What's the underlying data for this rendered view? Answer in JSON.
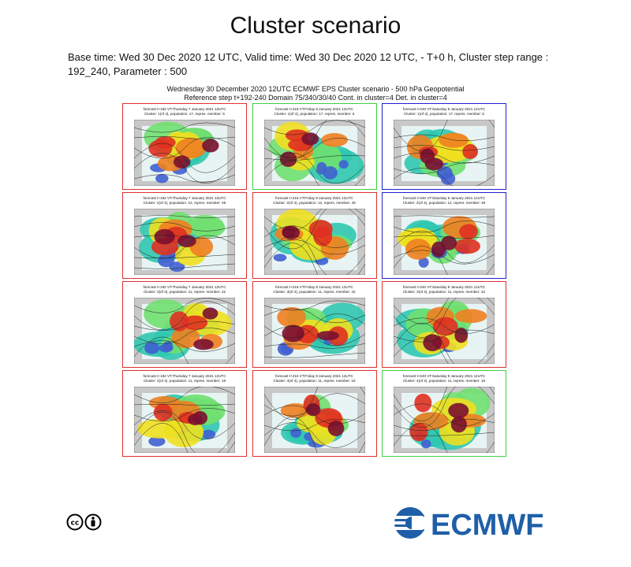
{
  "header": {
    "title": "Cluster scenario",
    "info": "Base time: Wed 30 Dec 2020 12 UTC, Valid time: Wed 30 Dec 2020 12 UTC, - T+0 h, Cluster step range : 192_240, Parameter : 500"
  },
  "figure": {
    "title_lines": [
      "Wednesday 30 December 2020 12UTC ECMWF EPS Cluster scenario - 500 hPa Geopotential",
      "Reference step t+192-240 Domain 75/340/30/40 Cont. in cluster=4 Det. in cluster=4"
    ],
    "panels": [
      {
        "line1": "forecast t+192 VT:Thursday 7 January 2021 12UTC",
        "line2": "Cluster: 1(of 4), population: 17, repres. member: 5",
        "border": "#e03030"
      },
      {
        "line1": "forecast t+216 VT:Friday 8 January 2021 12UTC",
        "line2": "Cluster: 1(of 4), population: 17, repres. member: 5",
        "border": "#40d040"
      },
      {
        "line1": "forecast t+240 VT:Saturday 9 January 2021 12UTC",
        "line2": "Cluster: 1(of 4), population: 17, repres. member: 5",
        "border": "#2020d0"
      },
      {
        "line1": "forecast t+192 VT:Thursday 7 January 2021 12UTC",
        "line2": "Cluster: 2(of 4), population: 12, repres. member: 49",
        "border": "#e03030"
      },
      {
        "line1": "forecast t+216 VT:Friday 8 January 2021 12UTC",
        "line2": "Cluster: 2(of 4), population: 12, repres. member: 49",
        "border": "#e03030"
      },
      {
        "line1": "forecast t+240 VT:Saturday 9 January 2021 12UTC",
        "line2": "Cluster: 2(of 4), population: 12, repres. member: 49",
        "border": "#2020d0"
      },
      {
        "line1": "forecast t+192 VT:Thursday 7 January 2021 12UTC",
        "line2": "Cluster: 3(of 4), population: 11, repres. member: 42",
        "border": "#e03030"
      },
      {
        "line1": "forecast t+216 VT:Friday 8 January 2021 12UTC",
        "line2": "Cluster: 3(of 4), population: 11, repres. member: 42",
        "border": "#e03030"
      },
      {
        "line1": "forecast t+240 VT:Saturday 9 January 2021 12UTC",
        "line2": "Cluster: 3(of 4), population: 11, repres. member: 42",
        "border": "#e03030"
      },
      {
        "line1": "forecast t+192 VT:Thursday 7 January 2021 12UTC",
        "line2": "Cluster: 4(of 4), population: 11, repres. member: 18",
        "border": "#e03030"
      },
      {
        "line1": "forecast t+216 VT:Friday 8 January 2021 12UTC",
        "line2": "Cluster: 4(of 4), population: 11, repres. member: 18",
        "border": "#e03030"
      },
      {
        "line1": "forecast t+240 VT:Saturday 9 January 2021 12UTC",
        "line2": "Cluster: 4(of 4), population: 11, repres. member: 18",
        "border": "#40d040"
      }
    ]
  },
  "footer": {
    "logo_text": "ECMWF"
  }
}
